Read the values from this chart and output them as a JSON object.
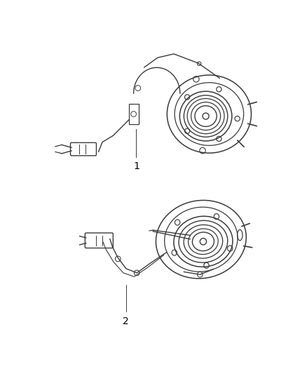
{
  "background_color": "#ffffff",
  "figure_width": 4.38,
  "figure_height": 5.33,
  "dpi": 100,
  "line_color": "#3a3a3a",
  "line_width": 1.0,
  "label_1": "1",
  "label_2": "2",
  "label_fontsize": 10
}
